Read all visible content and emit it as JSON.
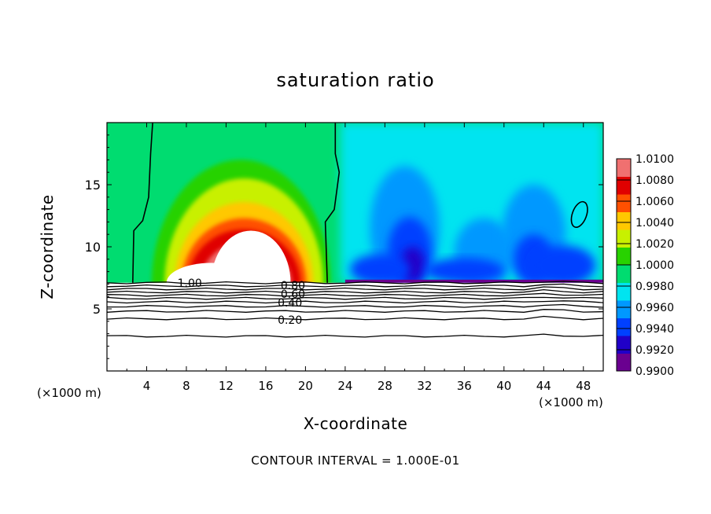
{
  "chart_data": {
    "type": "heatmap",
    "title": "saturation ratio",
    "xlabel": "X-coordinate",
    "ylabel": "Z-coordinate",
    "x_unit_label": "(×1000 m)",
    "contour_interval_text": "CONTOUR INTERVAL = 1.000E-01",
    "xlim": [
      0,
      50
    ],
    "ylim": [
      0,
      20
    ],
    "x_ticks": [
      4,
      8,
      12,
      16,
      20,
      24,
      28,
      32,
      36,
      40,
      44,
      48
    ],
    "y_ticks": [
      5,
      10,
      15
    ],
    "colorbar": {
      "levels": [
        0.99,
        0.992,
        0.994,
        0.996,
        0.998,
        1.0,
        1.002,
        1.004,
        1.006,
        1.008,
        1.01
      ],
      "tick_labels": [
        "0.9900",
        "0.9920",
        "0.9940",
        "0.9960",
        "0.9980",
        "1.0000",
        "1.0020",
        "1.0040",
        "1.0060",
        "1.0080",
        "1.0100"
      ],
      "colors": [
        "#6a0090",
        "#2000c8",
        "#0040ff",
        "#0098ff",
        "#00e4f0",
        "#00dc70",
        "#28d200",
        "#c8f000",
        "#ffc800",
        "#ff5000",
        "#e00000",
        "#f07070"
      ]
    },
    "contour_labels": [
      {
        "text": "1.00",
        "x": 7.1,
        "z": 7.1
      },
      {
        "text": "0.80",
        "x": 17.5,
        "z": 6.9
      },
      {
        "text": "0.60",
        "x": 17.5,
        "z": 6.2
      },
      {
        "text": "0.40",
        "x": 17.2,
        "z": 5.5
      },
      {
        "text": "0.20",
        "x": 17.2,
        "z": 4.1
      }
    ],
    "contour_lines_z": [
      7.1,
      6.85,
      6.6,
      6.35,
      6.1,
      5.85,
      5.55,
      5.2,
      4.8,
      4.2,
      2.8
    ],
    "cloud_boundary_contours": [
      {
        "name": "left",
        "points": [
          [
            4.6,
            20
          ],
          [
            4.4,
            17.5
          ],
          [
            4.2,
            14
          ],
          [
            3.6,
            12.1
          ],
          [
            2.7,
            11.3
          ],
          [
            2.6,
            7.1
          ]
        ]
      },
      {
        "name": "right",
        "points": [
          [
            23.0,
            20
          ],
          [
            23.0,
            17.5
          ],
          [
            23.4,
            16
          ],
          [
            22.9,
            13
          ],
          [
            22.0,
            12
          ],
          [
            22.2,
            7.1
          ]
        ]
      }
    ]
  }
}
